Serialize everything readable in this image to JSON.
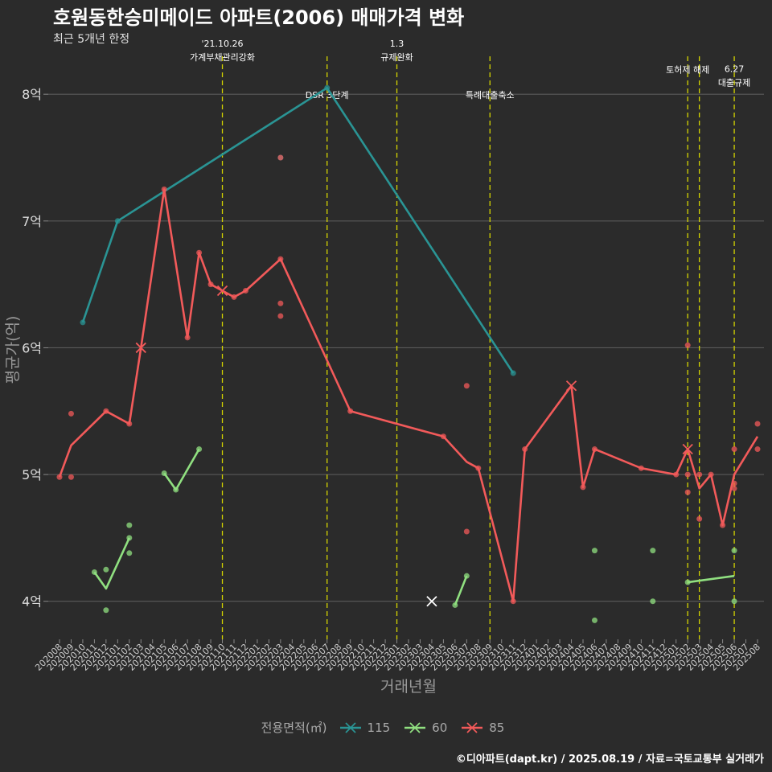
{
  "title": "호원동한승미메이드 아파트(2006) 매매가격 변화",
  "subtitle": "최근 5개년 한정",
  "caption": "©디아파트(dapt.kr) / 2025.08.19 / 자료=국토교통부 실거래가",
  "legend": {
    "title": "전용면적(㎡)",
    "items": [
      {
        "label": "115",
        "color": "#2a9494"
      },
      {
        "label": "60",
        "color": "#90e080"
      },
      {
        "label": "85",
        "color": "#f25a5a"
      }
    ]
  },
  "chart_data": {
    "type": "line",
    "xlabel": "거래년월",
    "ylabel": "평균가(억)",
    "categories": [
      "202008",
      "202009",
      "202010",
      "202011",
      "202012",
      "202101",
      "202102",
      "202103",
      "202104",
      "202105",
      "202106",
      "202107",
      "202108",
      "202109",
      "202110",
      "202111",
      "202112",
      "202201",
      "202202",
      "202203",
      "202204",
      "202205",
      "202206",
      "202207",
      "202208",
      "202209",
      "202210",
      "202211",
      "202212",
      "202301",
      "202302",
      "202303",
      "202304",
      "202305",
      "202306",
      "202307",
      "202308",
      "202309",
      "202310",
      "202311",
      "202312",
      "202401",
      "202402",
      "202403",
      "202404",
      "202405",
      "202406",
      "202407",
      "202408",
      "202409",
      "202410",
      "202411",
      "202412",
      "202501",
      "202502",
      "202503",
      "202504",
      "202505",
      "202506",
      "202507",
      "202508"
    ],
    "y_ticks": [
      {
        "value": 4,
        "label": "4억"
      },
      {
        "value": 5,
        "label": "5억"
      },
      {
        "value": 6,
        "label": "6억"
      },
      {
        "value": 7,
        "label": "7억"
      },
      {
        "value": 8,
        "label": "8억"
      }
    ],
    "ylim": [
      3.7,
      8.35
    ],
    "grid": "horizontal",
    "legend_position": "bottom",
    "series": [
      {
        "name": "115",
        "color": "#2a9494",
        "line": [
          [
            "202010",
            6.2
          ],
          [
            "202101",
            7.0
          ],
          [
            "202207",
            8.05
          ],
          [
            "202311",
            5.8
          ]
        ],
        "points": [
          [
            "202010",
            6.2
          ],
          [
            "202101",
            7.0
          ],
          [
            "202207",
            8.05
          ],
          [
            "202203",
            7.5
          ],
          [
            "202311",
            5.8
          ]
        ],
        "crosses": []
      },
      {
        "name": "60",
        "color": "#90e080",
        "line_segments": [
          [
            [
              "202011",
              4.23
            ],
            [
              "202012",
              4.1
            ],
            [
              "202102",
              4.5
            ]
          ],
          [
            [
              "202105",
              5.01
            ],
            [
              "202106",
              4.88
            ],
            [
              "202108",
              5.2
            ]
          ],
          [
            [
              "202306",
              3.97
            ],
            [
              "202307",
              4.2
            ]
          ],
          [
            [
              "202502",
              4.15
            ],
            [
              "202506",
              4.2
            ]
          ]
        ],
        "points": [
          [
            "202011",
            4.23
          ],
          [
            "202012",
            4.25
          ],
          [
            "202012",
            3.93
          ],
          [
            "202102",
            4.6
          ],
          [
            "202102",
            4.5
          ],
          [
            "202102",
            4.38
          ],
          [
            "202105",
            5.01
          ],
          [
            "202106",
            4.88
          ],
          [
            "202108",
            5.2
          ],
          [
            "202306",
            3.97
          ],
          [
            "202307",
            4.2
          ],
          [
            "202406",
            4.4
          ],
          [
            "202406",
            3.85
          ],
          [
            "202411",
            4.4
          ],
          [
            "202411",
            4.0
          ],
          [
            "202502",
            4.15
          ],
          [
            "202506",
            4.4
          ],
          [
            "202506",
            4.0
          ]
        ],
        "crosses": [
          [
            "202304",
            4.0
          ]
        ]
      },
      {
        "name": "85",
        "color": "#f25a5a",
        "line": [
          [
            "202008",
            4.98
          ],
          [
            "202009",
            5.23
          ],
          [
            "202012",
            5.5
          ],
          [
            "202102",
            5.4
          ],
          [
            "202103",
            6.0
          ],
          [
            "202105",
            7.25
          ],
          [
            "202107",
            6.08
          ],
          [
            "202108",
            6.75
          ],
          [
            "202109",
            6.5
          ],
          [
            "202110",
            6.45
          ],
          [
            "202111",
            6.4
          ],
          [
            "202112",
            6.45
          ],
          [
            "202203",
            6.7
          ],
          [
            "202209",
            5.5
          ],
          [
            "202305",
            5.3
          ],
          [
            "202307",
            5.1
          ],
          [
            "202308",
            5.05
          ],
          [
            "202311",
            4.0
          ],
          [
            "202312",
            5.2
          ],
          [
            "202404",
            5.7
          ],
          [
            "202405",
            4.9
          ],
          [
            "202406",
            5.2
          ],
          [
            "202410",
            5.05
          ],
          [
            "202501",
            5.0
          ],
          [
            "202502",
            5.2
          ],
          [
            "202503",
            4.89
          ],
          [
            "202504",
            5.0
          ],
          [
            "202505",
            4.6
          ],
          [
            "202506",
            5.0
          ],
          [
            "202508",
            5.3
          ]
        ],
        "points": [
          [
            "202008",
            4.98
          ],
          [
            "202009",
            4.98
          ],
          [
            "202009",
            5.48
          ],
          [
            "202012",
            5.5
          ],
          [
            "202102",
            5.4
          ],
          [
            "202105",
            7.25
          ],
          [
            "202107",
            6.08
          ],
          [
            "202108",
            6.75
          ],
          [
            "202109",
            6.5
          ],
          [
            "202111",
            6.4
          ],
          [
            "202112",
            6.45
          ],
          [
            "202203",
            6.7
          ],
          [
            "202203",
            6.35
          ],
          [
            "202203",
            6.25
          ],
          [
            "202203",
            7.5
          ],
          [
            "202209",
            5.5
          ],
          [
            "202305",
            5.3
          ],
          [
            "202307",
            5.7
          ],
          [
            "202307",
            4.55
          ],
          [
            "202308",
            5.05
          ],
          [
            "202311",
            4.0
          ],
          [
            "202312",
            5.2
          ],
          [
            "202405",
            4.9
          ],
          [
            "202406",
            5.2
          ],
          [
            "202410",
            5.05
          ],
          [
            "202501",
            5.0
          ],
          [
            "202502",
            6.02
          ],
          [
            "202502",
            5.0
          ],
          [
            "202502",
            4.86
          ],
          [
            "202503",
            5.0
          ],
          [
            "202503",
            4.65
          ],
          [
            "202504",
            5.0
          ],
          [
            "202505",
            4.6
          ],
          [
            "202506",
            5.2
          ],
          [
            "202506",
            4.93
          ],
          [
            "202506",
            4.89
          ],
          [
            "202508",
            5.4
          ],
          [
            "202508",
            5.2
          ]
        ],
        "crosses": [
          [
            "202103",
            6.0
          ],
          [
            "202110",
            6.45
          ],
          [
            "202404",
            5.7
          ],
          [
            "202502",
            5.2
          ]
        ]
      }
    ],
    "annotations": [
      {
        "x": "202110",
        "lines": [
          "'21.10.26",
          "가계부채관리강화"
        ],
        "y": 8.3
      },
      {
        "x": "202207",
        "lines": [
          "DSR 3단계"
        ],
        "y": 8.0
      },
      {
        "x": "202301",
        "lines": [
          "1.3",
          "규제완화"
        ],
        "y": 8.3
      },
      {
        "x": "202309",
        "lines": [
          "특례대출축소"
        ],
        "y": 8.0
      },
      {
        "x": "202502",
        "lines": [
          "토허제 해제"
        ],
        "y": 8.2
      },
      {
        "x": "202503",
        "lines": [],
        "y": null
      },
      {
        "x": "202506",
        "lines": [
          "6.27",
          "대출규제"
        ],
        "y": 8.1
      }
    ]
  }
}
